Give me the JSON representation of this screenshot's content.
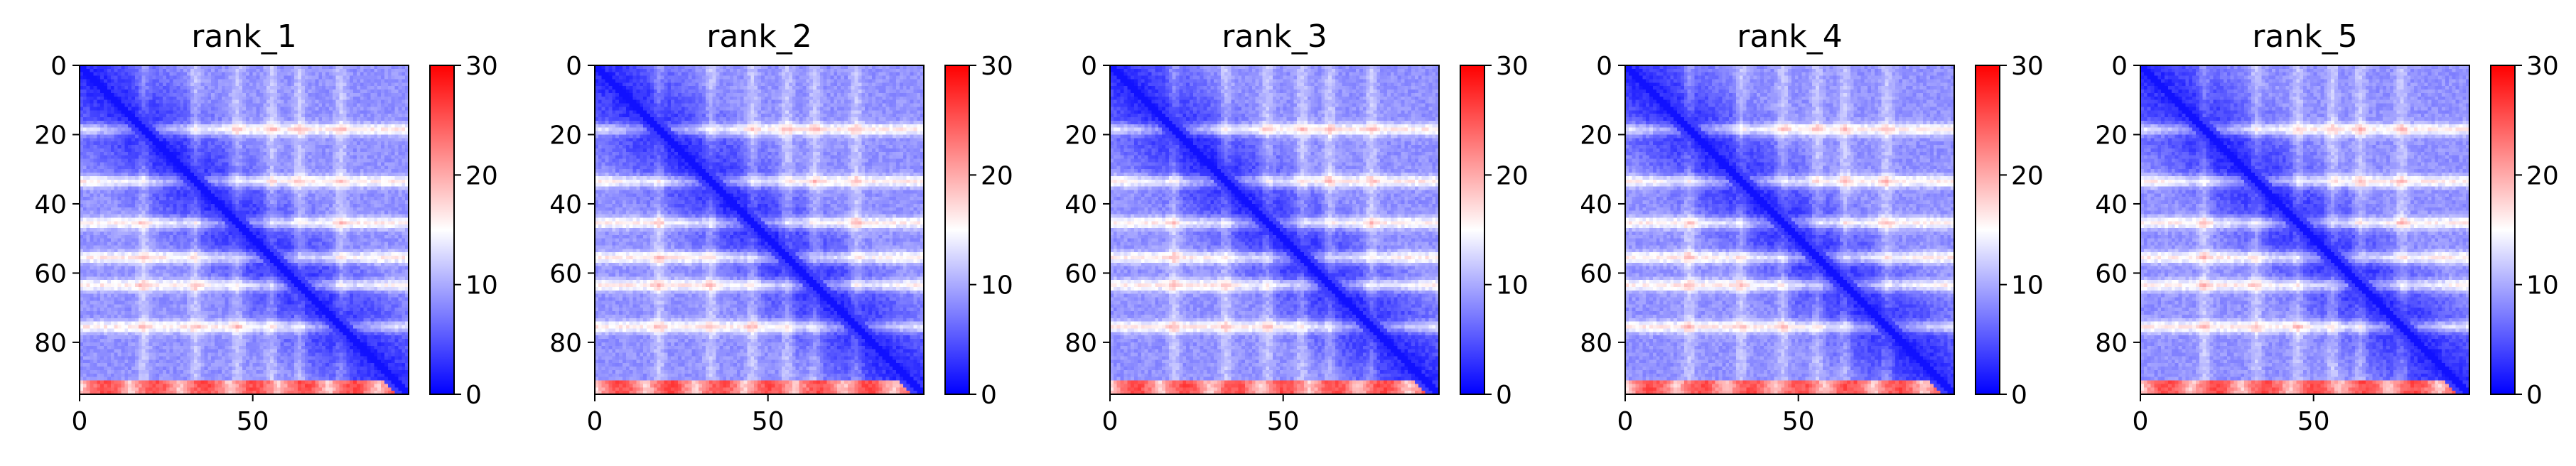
{
  "chart_data": [
    {
      "type": "heatmap",
      "title": "rank_1",
      "x_ticks": [
        0,
        50
      ],
      "y_ticks": [
        0,
        20,
        40,
        60,
        80
      ],
      "xlim": [
        0,
        95
      ],
      "ylim": [
        95,
        0
      ],
      "colorbar": {
        "range": [
          0,
          30
        ],
        "ticks": [
          0,
          10,
          20,
          30
        ],
        "colors": [
          "#0000ff",
          "#ffffff",
          "#ff0000"
        ]
      },
      "matrix_size": 95,
      "bright_rows": [
        18,
        33,
        45,
        55,
        63,
        75
      ],
      "bright_cols": [
        18,
        33,
        45,
        55,
        63,
        75
      ],
      "red_band_rows": [
        91,
        95
      ]
    },
    {
      "type": "heatmap",
      "title": "rank_2",
      "x_ticks": [
        0,
        50
      ],
      "y_ticks": [
        0,
        20,
        40,
        60,
        80
      ],
      "xlim": [
        0,
        95
      ],
      "ylim": [
        95,
        0
      ],
      "colorbar": {
        "range": [
          0,
          30
        ],
        "ticks": [
          0,
          10,
          20,
          30
        ],
        "colors": [
          "#0000ff",
          "#ffffff",
          "#ff0000"
        ]
      },
      "matrix_size": 95,
      "bright_rows": [
        18,
        33,
        45,
        55,
        63,
        75
      ],
      "bright_cols": [
        18,
        33,
        45,
        55,
        63,
        75
      ],
      "red_band_rows": [
        91,
        95
      ]
    },
    {
      "type": "heatmap",
      "title": "rank_3",
      "x_ticks": [
        0,
        50
      ],
      "y_ticks": [
        0,
        20,
        40,
        60,
        80
      ],
      "xlim": [
        0,
        95
      ],
      "ylim": [
        95,
        0
      ],
      "colorbar": {
        "range": [
          0,
          30
        ],
        "ticks": [
          0,
          10,
          20,
          30
        ],
        "colors": [
          "#0000ff",
          "#ffffff",
          "#ff0000"
        ]
      },
      "matrix_size": 95,
      "bright_rows": [
        18,
        33,
        45,
        55,
        63,
        75
      ],
      "bright_cols": [
        18,
        33,
        45,
        55,
        63,
        75
      ],
      "red_band_rows": [
        91,
        95
      ]
    },
    {
      "type": "heatmap",
      "title": "rank_4",
      "x_ticks": [
        0,
        50
      ],
      "y_ticks": [
        0,
        20,
        40,
        60,
        80
      ],
      "xlim": [
        0,
        95
      ],
      "ylim": [
        95,
        0
      ],
      "colorbar": {
        "range": [
          0,
          30
        ],
        "ticks": [
          0,
          10,
          20,
          30
        ],
        "colors": [
          "#0000ff",
          "#ffffff",
          "#ff0000"
        ]
      },
      "matrix_size": 95,
      "bright_rows": [
        18,
        33,
        45,
        55,
        63,
        75
      ],
      "bright_cols": [
        18,
        33,
        45,
        55,
        63,
        75
      ],
      "red_band_rows": [
        91,
        95
      ]
    },
    {
      "type": "heatmap",
      "title": "rank_5",
      "x_ticks": [
        0,
        50
      ],
      "y_ticks": [
        0,
        20,
        40,
        60,
        80
      ],
      "xlim": [
        0,
        95
      ],
      "ylim": [
        95,
        0
      ],
      "colorbar": {
        "range": [
          0,
          30
        ],
        "ticks": [
          0,
          10,
          20,
          30
        ],
        "colors": [
          "#0000ff",
          "#ffffff",
          "#ff0000"
        ]
      },
      "matrix_size": 95,
      "bright_rows": [
        18,
        33,
        45,
        55,
        63,
        75
      ],
      "bright_cols": [
        18,
        33,
        45,
        55,
        63,
        75
      ],
      "red_band_rows": [
        91,
        95
      ]
    }
  ]
}
